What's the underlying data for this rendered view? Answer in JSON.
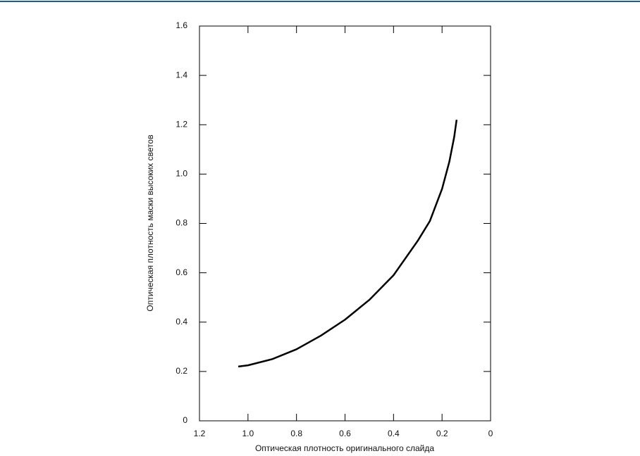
{
  "chart_data": {
    "type": "line",
    "xlabel": "Оптическая плотность оригинального слайда",
    "ylabel": "Оптическая плотность маски высоких светов",
    "x": [
      1.04,
      1.0,
      0.9,
      0.8,
      0.7,
      0.6,
      0.5,
      0.4,
      0.3,
      0.25,
      0.2,
      0.17,
      0.15,
      0.14
    ],
    "series": [
      {
        "color": "#000000",
        "values": [
          0.22,
          0.225,
          0.25,
          0.29,
          0.345,
          0.41,
          0.49,
          0.59,
          0.73,
          0.81,
          0.94,
          1.05,
          1.15,
          1.22
        ]
      }
    ],
    "xlim": [
      1.2,
      0
    ],
    "ylim": [
      0,
      1.6
    ],
    "xticks": [
      1.2,
      {
        "value": 1,
        "label": "1.0"
      },
      0.8,
      0.6,
      0.4,
      0.2,
      0
    ],
    "yticks": [
      0,
      0.2,
      0.4,
      0.6,
      0.8,
      {
        "value": 1,
        "label": "1.0"
      },
      1.2,
      1.4,
      1.6
    ]
  }
}
